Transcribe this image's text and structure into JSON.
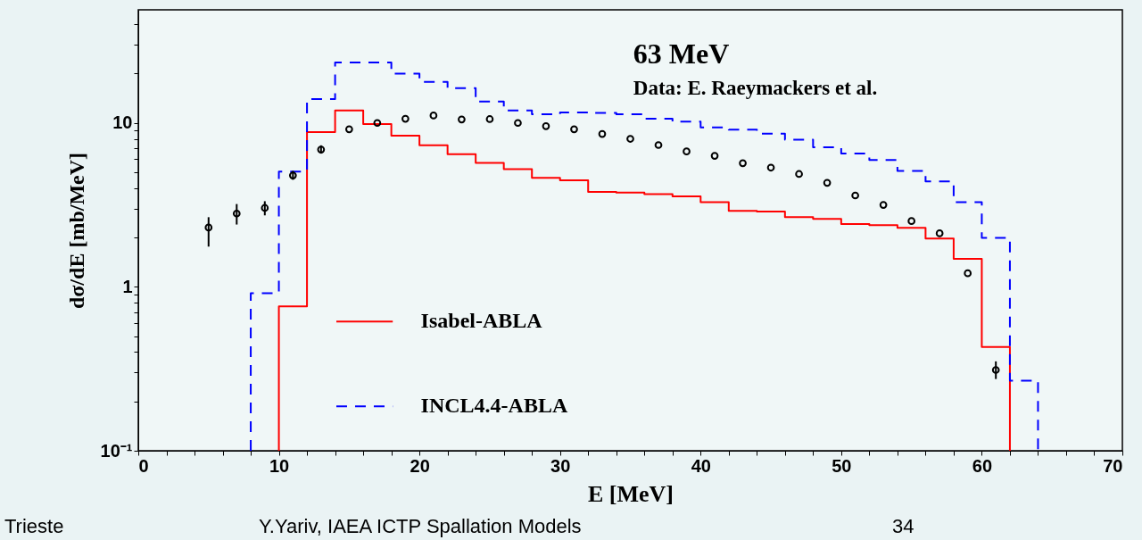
{
  "chart_data": {
    "type": "histogram",
    "title": "63 MeV",
    "subtitle": "Data: E. Raeymackers et al.",
    "xlabel": "E [MeV]",
    "ylabel": "dσ/dE [mb/MeV]",
    "xlim": [
      0,
      70
    ],
    "ylim": [
      0.1,
      49
    ],
    "log": "y",
    "grid": false,
    "legend": "bottom",
    "marker": "circle",
    "xticks": [
      0,
      {
        "value": 2,
        "label": null
      },
      {
        "value": 4,
        "label": null
      },
      {
        "value": 6,
        "label": null
      },
      {
        "value": 8,
        "label": null
      },
      10,
      {
        "value": 12,
        "label": null
      },
      {
        "value": 14,
        "label": null
      },
      {
        "value": 16,
        "label": null
      },
      {
        "value": 18,
        "label": null
      },
      20,
      {
        "value": 22,
        "label": null
      },
      {
        "value": 24,
        "label": null
      },
      {
        "value": 26,
        "label": null
      },
      {
        "value": 28,
        "label": null
      },
      30,
      {
        "value": 32,
        "label": null
      },
      {
        "value": 34,
        "label": null
      },
      {
        "value": 36,
        "label": null
      },
      {
        "value": 38,
        "label": null
      },
      40,
      {
        "value": 42,
        "label": null
      },
      {
        "value": 44,
        "label": null
      },
      {
        "value": 46,
        "label": null
      },
      {
        "value": 48,
        "label": null
      },
      50,
      {
        "value": 52,
        "label": null
      },
      {
        "value": 54,
        "label": null
      },
      {
        "value": 56,
        "label": null
      },
      {
        "value": 58,
        "label": null
      },
      60,
      {
        "value": 62,
        "label": null
      },
      {
        "value": 64,
        "label": null
      },
      {
        "value": 66,
        "label": null
      },
      {
        "value": 68,
        "label": null
      },
      70
    ],
    "yticks": [
      {
        "value": 0.1,
        "label": "10⁻¹"
      },
      {
        "value": 0.2,
        "label": null
      },
      {
        "value": 0.3,
        "label": null
      },
      {
        "value": 0.4,
        "label": null
      },
      {
        "value": 0.5,
        "label": null
      },
      {
        "value": 0.6,
        "label": null
      },
      {
        "value": 0.7,
        "label": null
      },
      {
        "value": 0.8,
        "label": null
      },
      {
        "value": 0.9,
        "label": null
      },
      1,
      {
        "value": 2,
        "label": null
      },
      {
        "value": 3,
        "label": null
      },
      {
        "value": 4,
        "label": null
      },
      {
        "value": 5,
        "label": null
      },
      {
        "value": 6,
        "label": null
      },
      {
        "value": 7,
        "label": null
      },
      {
        "value": 8,
        "label": null
      },
      {
        "value": 9,
        "label": null
      },
      10,
      {
        "value": 20,
        "label": null
      },
      {
        "value": 30,
        "label": null
      },
      {
        "value": 40,
        "label": null
      }
    ],
    "series": [
      {
        "name": "Isabel-ABLA",
        "type": "histogram",
        "color": "#ff0000",
        "line_style": "solid",
        "bins": [
          10,
          12,
          14,
          16,
          18,
          20,
          22,
          24,
          26,
          28,
          30,
          32,
          34,
          36,
          38,
          40,
          42,
          44,
          46,
          48,
          50,
          52,
          54,
          56,
          58,
          60,
          62
        ],
        "values": [
          0.76,
          8.8,
          11.9,
          9.85,
          8.35,
          7.3,
          6.45,
          5.7,
          5.23,
          4.62,
          4.47,
          3.8,
          3.76,
          3.68,
          3.56,
          3.29,
          2.91,
          2.88,
          2.66,
          2.6,
          2.42,
          2.38,
          2.29,
          1.97,
          1.48,
          0.43
        ]
      },
      {
        "name": "INCL4.4-ABLA",
        "type": "histogram",
        "color": "#0000ff",
        "line_style": "dashed",
        "bins": [
          8,
          10,
          12,
          14,
          16,
          18,
          20,
          22,
          24,
          26,
          28,
          30,
          32,
          34,
          36,
          38,
          40,
          42,
          44,
          46,
          48,
          50,
          52,
          54,
          56,
          58,
          60,
          62,
          64
        ],
        "values": [
          0.915,
          5.05,
          14.0,
          23.4,
          23.4,
          20.0,
          17.8,
          16.3,
          13.5,
          11.9,
          11.3,
          11.6,
          11.5,
          11.3,
          10.6,
          10.2,
          9.4,
          9.1,
          8.6,
          7.9,
          7.1,
          6.5,
          5.95,
          5.1,
          4.4,
          3.29,
          1.99,
          0.268
        ]
      },
      {
        "type": "scatter",
        "color": "#000000",
        "x": [
          5,
          7,
          9,
          11,
          13,
          15,
          17,
          19,
          21,
          23,
          25,
          27,
          29,
          31,
          33,
          35,
          37,
          39,
          41,
          43,
          45,
          47,
          49,
          51,
          53,
          55,
          57,
          59,
          61
        ],
        "values": [
          2.3,
          2.8,
          3.03,
          4.78,
          6.88,
          9.15,
          10.0,
          10.6,
          11.1,
          10.5,
          10.55,
          10.0,
          9.56,
          9.15,
          8.57,
          8.0,
          7.33,
          6.7,
          6.3,
          5.68,
          5.34,
          4.88,
          4.31,
          3.61,
          3.16,
          2.52,
          2.12,
          1.21,
          0.311
        ],
        "errors": [
          [
            1.76,
            2.66
          ],
          [
            2.4,
            3.2
          ],
          [
            2.73,
            3.33
          ],
          [
            4.5,
            5.1
          ],
          [
            6.5,
            7.3
          ],
          null,
          null,
          null,
          null,
          null,
          null,
          null,
          null,
          null,
          null,
          null,
          null,
          null,
          null,
          null,
          null,
          null,
          null,
          null,
          null,
          null,
          null,
          null,
          [
            0.274,
            0.351
          ]
        ]
      }
    ],
    "annotations": [
      "Trieste",
      "Y.Yariv, IAEA ICTP Spallation Models",
      "34"
    ]
  }
}
